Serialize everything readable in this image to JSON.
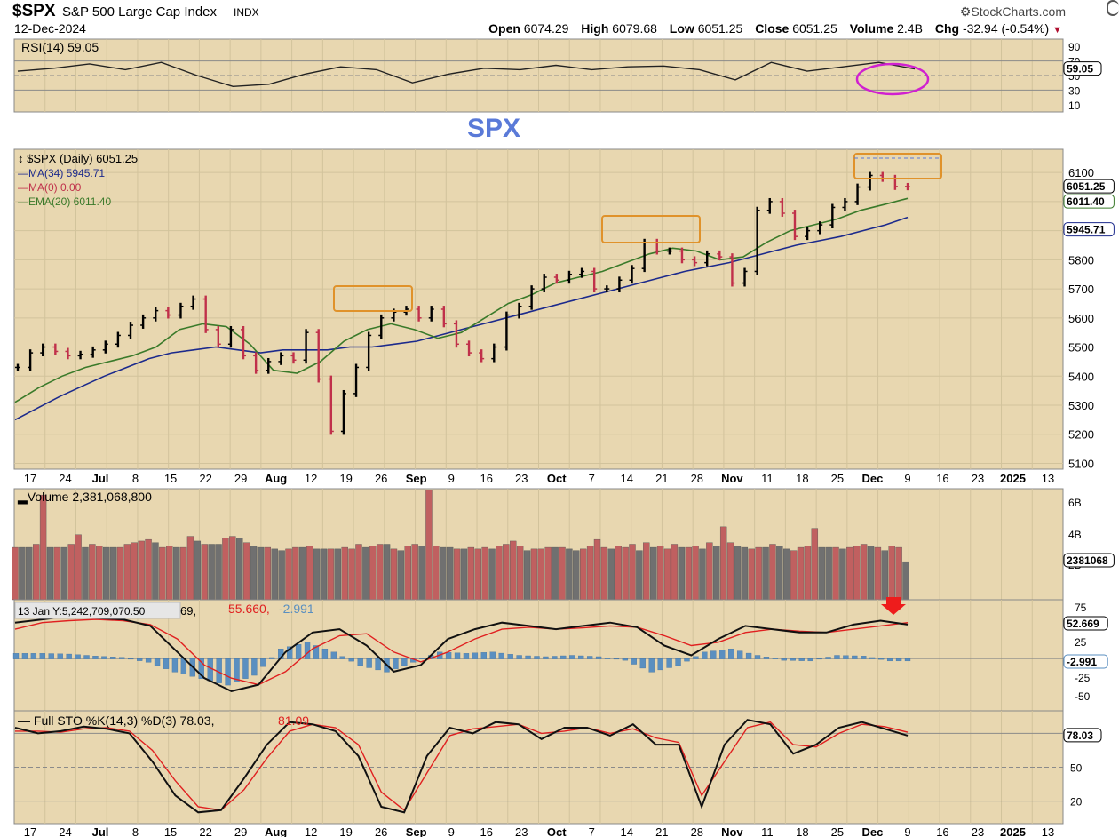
{
  "header": {
    "symbol": "$SPX",
    "name": "S&P 500 Large Cap Index",
    "exchange": "INDX",
    "date": "12-Dec-2024",
    "logo": "StockCharts.com",
    "open_label": "Open",
    "open": "6074.29",
    "high_label": "High",
    "high": "6079.68",
    "low_label": "Low",
    "low": "6051.25",
    "close_label": "Close",
    "close": "6051.25",
    "volume_label": "Volume",
    "volume": "2.4B",
    "chg_label": "Chg",
    "chg": "-32.94 (-0.54%)"
  },
  "colors": {
    "panel_bg": "#e8d7b0",
    "up_bar": "#000000",
    "down_bar": "#c0304a",
    "ma34": "#1c2a8c",
    "ma0": "#c0304a",
    "ema20": "#3a7a2a",
    "volume_up": "#707070",
    "volume_down": "#c06060",
    "macd_hist": "#5a8fc0",
    "highlight_box": "#e0922a",
    "rsi_circle": "#d020d0",
    "watermark": "#5a7ad8"
  },
  "chart_data": [
    {
      "type": "line",
      "panel": "RSI",
      "legend": "RSI(14) 59.05",
      "current": 59.05,
      "current_label": "59.05",
      "yticks": [
        90,
        70,
        50,
        30,
        10
      ],
      "levels": [
        70,
        50,
        30
      ],
      "ylim": [
        0,
        100
      ],
      "x": [
        "17",
        "24",
        "Jul",
        "8",
        "15",
        "22",
        "29",
        "Aug",
        "12",
        "19",
        "26",
        "Sep",
        "9",
        "16",
        "23",
        "Oct",
        "7",
        "14",
        "21",
        "28",
        "Nov",
        "11",
        "18",
        "25",
        "Dec",
        "9"
      ],
      "values": [
        56,
        60,
        66,
        58,
        68,
        50,
        35,
        38,
        52,
        62,
        58,
        40,
        52,
        60,
        58,
        64,
        58,
        62,
        63,
        58,
        44,
        68,
        56,
        62,
        68,
        59
      ]
    },
    {
      "type": "ohlc",
      "panel": "price",
      "watermark": "SPX",
      "legend": [
        "$SPX (Daily) 6051.25",
        "MA(34) 5945.71",
        "MA(0) 0.00",
        "EMA(20) 6011.40"
      ],
      "yticks": [
        6100,
        6000,
        5900,
        5800,
        5700,
        5600,
        5500,
        5400,
        5300,
        5200,
        5100
      ],
      "ylim": [
        5080,
        6180
      ],
      "last_labels": [
        "6051.25",
        "6011.40",
        "5945.71"
      ],
      "close": [
        5430,
        5480,
        5500,
        5485,
        5470,
        5475,
        5490,
        5510,
        5540,
        5575,
        5600,
        5625,
        5610,
        5640,
        5665,
        5560,
        5510,
        5560,
        5470,
        5420,
        5450,
        5470,
        5455,
        5550,
        5390,
        5210,
        5340,
        5430,
        5540,
        5600,
        5620,
        5630,
        5600,
        5630,
        5580,
        5510,
        5480,
        5460,
        5500,
        5610,
        5640,
        5700,
        5740,
        5730,
        5750,
        5760,
        5700,
        5700,
        5730,
        5770,
        5860,
        5830,
        5830,
        5800,
        5790,
        5820,
        5810,
        5720,
        5760,
        5970,
        6000,
        5960,
        5880,
        5900,
        5920,
        5980,
        6000,
        6050,
        6090,
        6080,
        6052,
        6051
      ],
      "ma34": [
        5250,
        5290,
        5330,
        5365,
        5400,
        5430,
        5460,
        5480,
        5490,
        5500,
        5490,
        5480,
        5490,
        5490,
        5490,
        5500,
        5500,
        5510,
        5520,
        5540,
        5560,
        5580,
        5600,
        5620,
        5640,
        5660,
        5680,
        5700,
        5720,
        5740,
        5760,
        5775,
        5790,
        5810,
        5830,
        5850,
        5865,
        5880,
        5900,
        5920,
        5946
      ],
      "ema20": [
        5310,
        5360,
        5400,
        5430,
        5450,
        5470,
        5500,
        5560,
        5580,
        5570,
        5510,
        5420,
        5410,
        5450,
        5520,
        5560,
        5580,
        5560,
        5530,
        5550,
        5600,
        5650,
        5680,
        5720,
        5740,
        5760,
        5790,
        5820,
        5840,
        5830,
        5800,
        5810,
        5860,
        5900,
        5920,
        5940,
        5970,
        5990,
        6011
      ]
    },
    {
      "type": "bar",
      "panel": "volume",
      "legend": "Volume 2,381,068,800",
      "yticks": [
        "6B",
        "4B",
        "2B"
      ],
      "last_label": "2381068",
      "ylim": [
        0,
        7
      ],
      "values": [
        3.3,
        3.3,
        3.3,
        3.5,
        6.6,
        3.3,
        3.3,
        3.3,
        3.5,
        4.1,
        3.3,
        3.5,
        3.4,
        3.3,
        3.3,
        3.3,
        3.5,
        3.6,
        3.7,
        3.8,
        3.6,
        3.3,
        3.4,
        3.3,
        3.3,
        4.0,
        3.7,
        3.5,
        3.5,
        3.5,
        3.9,
        4.0,
        3.9,
        3.6,
        3.4,
        3.3,
        3.3,
        3.2,
        3.1,
        3.2,
        3.3,
        3.3,
        3.4,
        3.2,
        3.2,
        3.2,
        3.2,
        3.3,
        3.2,
        3.5,
        3.3,
        3.4,
        3.5,
        3.5,
        3.2,
        3.1,
        3.4,
        3.5,
        3.4,
        6.9,
        3.4,
        3.3,
        3.3,
        3.2,
        3.2,
        3.3,
        3.2,
        3.3,
        3.2,
        3.4,
        3.5,
        3.7,
        3.4,
        3.1,
        3.2,
        3.2,
        3.3,
        3.3,
        3.3,
        3.2,
        3.1,
        3.2,
        3.4,
        3.8,
        3.3,
        3.2,
        3.4,
        3.3,
        3.5,
        3.1,
        3.6,
        3.3,
        3.4,
        3.2,
        3.5,
        3.3,
        3.3,
        3.4,
        3.2,
        3.6,
        3.4,
        4.6,
        3.6,
        3.4,
        3.3,
        3.2,
        3.3,
        3.3,
        3.5,
        3.4,
        3.2,
        3.1,
        3.3,
        3.4,
        4.5,
        3.3,
        3.3,
        3.3,
        3.2,
        3.3,
        3.4,
        3.5,
        3.4,
        3.3,
        3.1,
        3.4,
        3.3,
        2.4
      ]
    },
    {
      "type": "line",
      "panel": "MACD",
      "legend_prefix": "13 Jan Y:5,242,709,070.50",
      "legend_tail": "69,",
      "value_signal": "55.660",
      "value_hist": "-2.991",
      "yticks": [
        "75",
        "50",
        "25",
        "-25",
        "-50"
      ],
      "last_labels": [
        "52.669",
        "-2.991"
      ],
      "ylim": [
        -80,
        90
      ],
      "macd": [
        55,
        60,
        65,
        62,
        60,
        50,
        10,
        -30,
        -50,
        -40,
        10,
        40,
        45,
        20,
        -20,
        -10,
        30,
        45,
        55,
        50,
        45,
        50,
        55,
        48,
        20,
        5,
        30,
        50,
        45,
        40,
        40,
        52,
        58,
        52
      ],
      "signal": [
        45,
        55,
        58,
        60,
        58,
        52,
        30,
        -10,
        -30,
        -40,
        -20,
        15,
        35,
        38,
        10,
        -5,
        10,
        30,
        45,
        48,
        45,
        47,
        50,
        48,
        35,
        20,
        25,
        40,
        45,
        42,
        40,
        45,
        50,
        55
      ],
      "hist": [
        8,
        8,
        7,
        4,
        2,
        -5,
        -20,
        -30,
        -40,
        -25,
        15,
        25,
        10,
        -10,
        -20,
        -5,
        10,
        8,
        10,
        5,
        3,
        5,
        3,
        -2,
        -20,
        -10,
        10,
        15,
        5,
        -2,
        -3,
        5,
        4,
        -3
      ]
    },
    {
      "type": "line",
      "panel": "Full STO",
      "legend_name": "Full STO %K(14,3) %D(3)",
      "legend_k": "78.03",
      "legend_d": "81.09",
      "yticks": [
        "80",
        "50",
        "20"
      ],
      "last_label": "78.03",
      "ylim": [
        0,
        100
      ],
      "k": [
        85,
        80,
        82,
        86,
        84,
        80,
        55,
        25,
        10,
        12,
        40,
        70,
        90,
        88,
        82,
        60,
        15,
        10,
        60,
        85,
        80,
        90,
        88,
        75,
        85,
        85,
        78,
        88,
        70,
        70,
        15,
        70,
        92,
        88,
        62,
        70,
        85,
        90,
        84,
        78
      ],
      "d": [
        82,
        82,
        81,
        84,
        85,
        82,
        65,
        38,
        15,
        12,
        30,
        58,
        82,
        88,
        85,
        70,
        28,
        12,
        45,
        78,
        84,
        86,
        88,
        80,
        82,
        85,
        80,
        84,
        76,
        72,
        25,
        55,
        85,
        90,
        70,
        68,
        80,
        88,
        86,
        81
      ]
    }
  ],
  "x_axis": [
    "17",
    "24",
    "Jul",
    "8",
    "15",
    "22",
    "29",
    "Aug",
    "12",
    "19",
    "26",
    "Sep",
    "9",
    "16",
    "23",
    "Oct",
    "7",
    "14",
    "21",
    "28",
    "Nov",
    "11",
    "18",
    "25",
    "Dec",
    "9",
    "16",
    "23",
    "2025",
    "13"
  ]
}
